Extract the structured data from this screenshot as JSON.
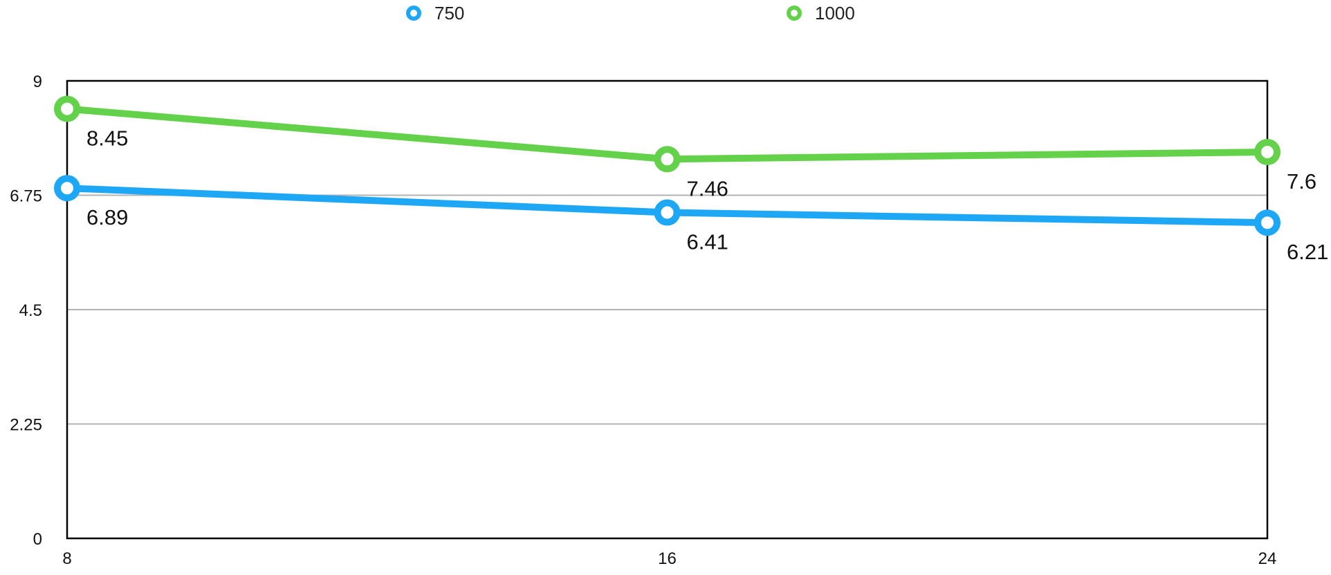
{
  "chart_data": {
    "type": "line",
    "x": [
      8,
      16,
      24
    ],
    "x_tick_labels": [
      "8",
      "16",
      "24"
    ],
    "xlim": [
      8,
      24
    ],
    "ylim": [
      0,
      9
    ],
    "y_ticks": [
      0,
      2.25,
      4.5,
      6.75,
      9
    ],
    "y_tick_labels": [
      "0",
      "2.25",
      "4.5",
      "6.75",
      "9"
    ],
    "grid": true,
    "legend_position": "top",
    "series": [
      {
        "name": "750",
        "color": "#1ea7f5",
        "values": [
          6.89,
          6.41,
          6.21
        ],
        "value_labels": [
          "6.89",
          "6.41",
          "6.21"
        ]
      },
      {
        "name": "1000",
        "color": "#63d14a",
        "values": [
          8.45,
          7.46,
          7.6
        ],
        "value_labels": [
          "8.45",
          "7.46",
          "7.6"
        ]
      }
    ]
  }
}
